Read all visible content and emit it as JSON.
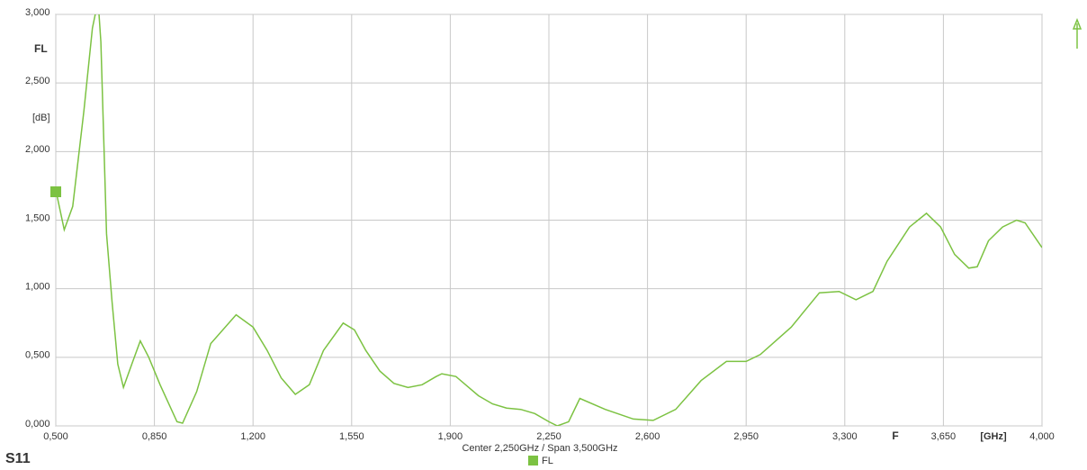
{
  "chart_data": {
    "type": "line",
    "title": "S11",
    "subtitle": "Center 2,250GHz / Span 3,500GHz",
    "y_label": "FL",
    "y_unit": "[dB]",
    "x_label": "F",
    "x_unit": "[GHz]",
    "xlim": [
      0.5,
      4.0
    ],
    "xticks": [
      {
        "value": 0.5,
        "label": "0,500"
      },
      {
        "value": 0.85,
        "label": "0,850"
      },
      {
        "value": 1.2,
        "label": "1,200"
      },
      {
        "value": 1.55,
        "label": "1,550"
      },
      {
        "value": 1.9,
        "label": "1,900"
      },
      {
        "value": 2.25,
        "label": "2,250"
      },
      {
        "value": 2.6,
        "label": "2,600"
      },
      {
        "value": 2.95,
        "label": "2,950"
      },
      {
        "value": 3.3,
        "label": "3,300"
      },
      {
        "value": 3.65,
        "label": "3,650"
      },
      {
        "value": 4.0,
        "label": "4,000"
      }
    ],
    "ylim": [
      0,
      3
    ],
    "yticks": [
      {
        "value": 0,
        "label": "0,000"
      },
      {
        "value": 0.5,
        "label": "0,500"
      },
      {
        "value": 1,
        "label": "1,000"
      },
      {
        "value": 1.5,
        "label": "1,500"
      },
      {
        "value": 2,
        "label": "2,000"
      },
      {
        "value": 2.5,
        "label": "2,500"
      },
      {
        "value": 3,
        "label": "3,000"
      }
    ],
    "grid": true,
    "x": [
      0.5,
      0.53,
      0.56,
      0.6,
      0.63,
      0.65,
      0.66,
      0.68,
      0.7,
      0.72,
      0.74,
      0.77,
      0.8,
      0.83,
      0.87,
      0.93,
      0.95,
      1.0,
      1.05,
      1.14,
      1.2,
      1.25,
      1.3,
      1.35,
      1.4,
      1.45,
      1.52,
      1.56,
      1.6,
      1.65,
      1.7,
      1.75,
      1.8,
      1.85,
      1.87,
      1.92,
      2.0,
      2.05,
      2.1,
      2.15,
      2.2,
      2.25,
      2.28,
      2.32,
      2.36,
      2.45,
      2.55,
      2.62,
      2.7,
      2.79,
      2.88,
      2.95,
      3.0,
      3.11,
      3.21,
      3.28,
      3.34,
      3.4,
      3.45,
      3.53,
      3.59,
      3.64,
      3.69,
      3.74,
      3.77,
      3.81,
      3.86,
      3.91,
      3.94,
      4.0
    ],
    "series": [
      {
        "name": "FL",
        "color": "#7cc242",
        "values": [
          1.72,
          1.43,
          1.6,
          2.3,
          2.9,
          3.1,
          2.8,
          1.4,
          0.9,
          0.45,
          0.28,
          0.45,
          0.62,
          0.5,
          0.3,
          0.03,
          0.02,
          0.25,
          0.6,
          0.81,
          0.72,
          0.55,
          0.35,
          0.23,
          0.3,
          0.55,
          0.75,
          0.7,
          0.55,
          0.4,
          0.31,
          0.28,
          0.3,
          0.36,
          0.38,
          0.36,
          0.22,
          0.16,
          0.13,
          0.12,
          0.09,
          0.03,
          0.0,
          0.03,
          0.2,
          0.12,
          0.05,
          0.04,
          0.12,
          0.33,
          0.47,
          0.47,
          0.52,
          0.72,
          0.97,
          0.98,
          0.92,
          0.98,
          1.2,
          1.45,
          1.55,
          1.45,
          1.25,
          1.15,
          1.16,
          1.35,
          1.45,
          1.5,
          1.48,
          1.3
        ]
      }
    ]
  }
}
